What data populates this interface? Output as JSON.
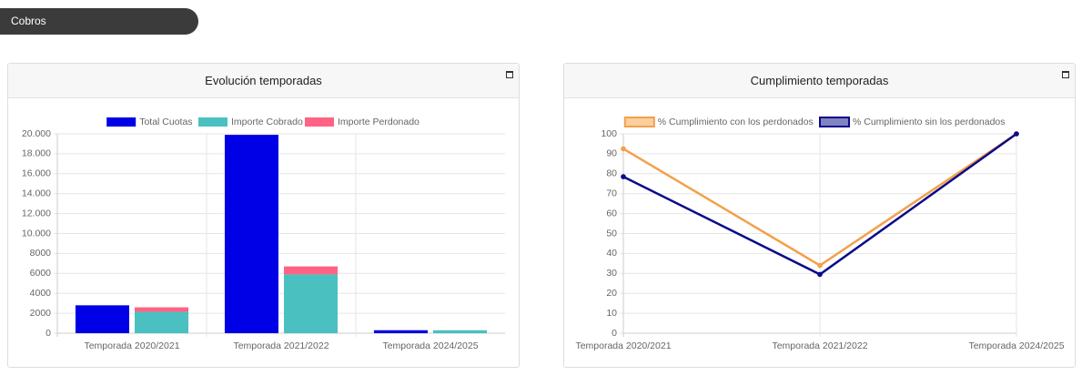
{
  "header": {
    "title": "Cobros"
  },
  "chart_data": [
    {
      "type": "bar",
      "title": "Evolución temporadas",
      "categories": [
        "Temporada 2020/2021",
        "Temporada 2021/2022",
        "Temporada 2024/2025"
      ],
      "series": [
        {
          "name": "Total Cuotas",
          "color": "#0000e6",
          "stack": 0,
          "values": [
            2800,
            19900,
            300
          ]
        },
        {
          "name": "Importe Cobrado",
          "color": "#4bc0c0",
          "stack": 1,
          "values": [
            2150,
            5900,
            300
          ]
        },
        {
          "name": "Importe Perdonado",
          "color": "#ff6384",
          "stack": 1,
          "values": [
            450,
            800,
            0
          ]
        }
      ],
      "ylim": [
        0,
        20000
      ],
      "yticks": [
        0,
        2000,
        4000,
        6000,
        8000,
        {
          "value": 10000,
          "label": "10.000"
        },
        {
          "value": 12000,
          "label": "12.000"
        },
        {
          "value": 14000,
          "label": "14.000"
        },
        {
          "value": 16000,
          "label": "16.000"
        },
        {
          "value": 18000,
          "label": "18.000"
        },
        {
          "value": 20000,
          "label": "20.000"
        }
      ],
      "grid": true
    },
    {
      "type": "line",
      "title": "Cumplimiento temporadas",
      "categories": [
        "Temporada 2020/2021",
        "Temporada 2021/2022",
        "Temporada 2024/2025"
      ],
      "series": [
        {
          "name": "% Cumplimiento con los perdonados",
          "color": "#f4a04a",
          "fill": "#fbcf9f",
          "values": [
            92.5,
            34,
            100
          ]
        },
        {
          "name": "% Cumplimiento sin los perdonados",
          "color": "#0a0a8a",
          "fill": "#8383c4",
          "values": [
            78.5,
            29.5,
            100
          ]
        }
      ],
      "ylim": [
        0,
        100
      ],
      "yticks": [
        0,
        10,
        20,
        30,
        40,
        50,
        60,
        70,
        80,
        90,
        100
      ],
      "grid": true
    }
  ]
}
